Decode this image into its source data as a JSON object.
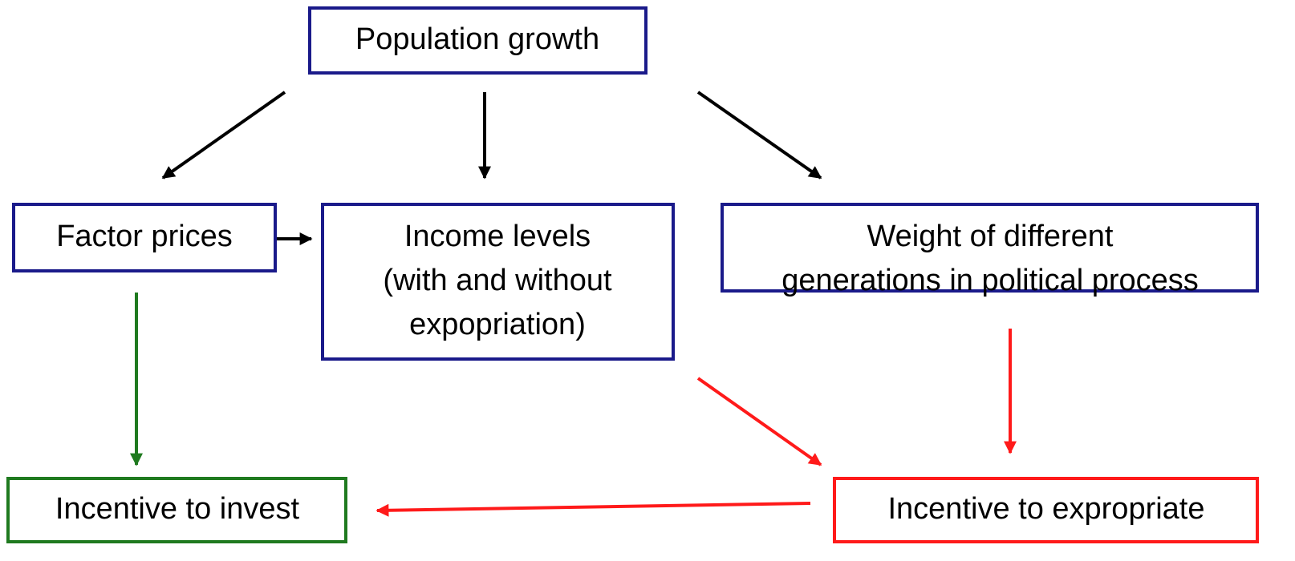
{
  "nodes": [
    {
      "lines": [
        "Population growth"
      ]
    },
    {
      "lines": [
        "Factor prices"
      ]
    },
    {
      "lines": [
        "Income levels",
        "(with and without",
        "expopriation)"
      ]
    },
    {
      "lines": [
        "Weight of different",
        "generations in political process"
      ]
    },
    {
      "lines": [
        "Incentive to invest"
      ]
    },
    {
      "lines": [
        "Incentive to expropriate"
      ]
    }
  ]
}
